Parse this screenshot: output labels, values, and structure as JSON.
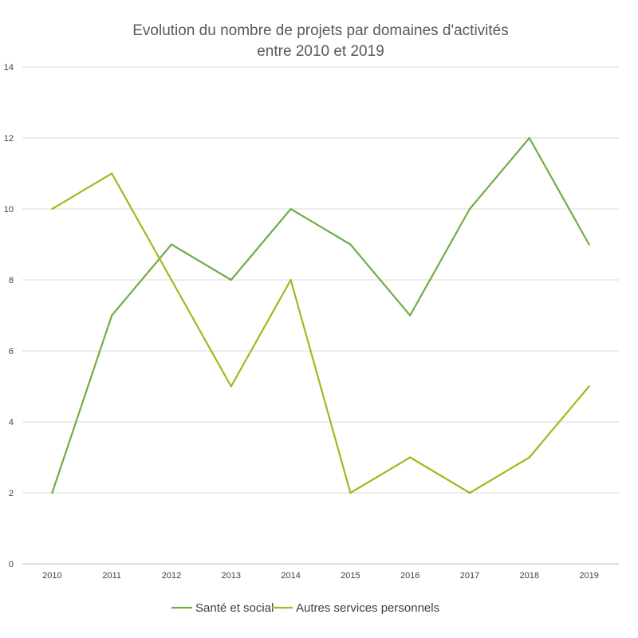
{
  "chart_data": {
    "type": "line",
    "title": [
      "Evolution du nombre de projets par domaines d'activités",
      "entre 2010 et 2019"
    ],
    "xlabel": "",
    "ylabel": "",
    "categories": [
      "2010",
      "2011",
      "2012",
      "2013",
      "2014",
      "2015",
      "2016",
      "2017",
      "2018",
      "2019"
    ],
    "ylim": [
      0,
      14
    ],
    "yticks": [
      0,
      2,
      4,
      6,
      8,
      10,
      12,
      14
    ],
    "grid": true,
    "legend_position": "bottom",
    "series": [
      {
        "name": "Santé et social",
        "color": "#70ad47",
        "values": [
          2,
          7,
          9,
          8,
          10,
          9,
          7,
          10,
          12,
          9
        ]
      },
      {
        "name": "Autres services personnels",
        "color": "#9bbb1e",
        "values": [
          10,
          11,
          8,
          5,
          8,
          2,
          3,
          2,
          3,
          5
        ]
      }
    ]
  }
}
